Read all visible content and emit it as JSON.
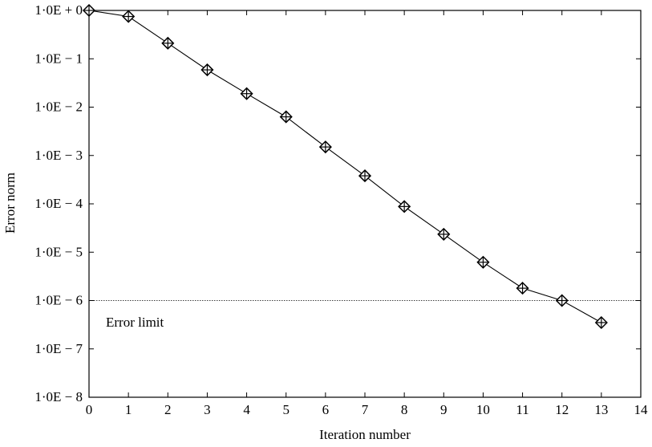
{
  "chart_data": {
    "type": "line",
    "title": "",
    "xlabel": "Iteration number",
    "ylabel": "Error norm",
    "xlim": [
      0,
      14
    ],
    "ylim": [
      1e-08,
      1
    ],
    "yscale": "log",
    "grid": false,
    "x_ticks": [
      "0",
      "1",
      "2",
      "3",
      "4",
      "5",
      "6",
      "7",
      "8",
      "9",
      "10",
      "11",
      "12",
      "13",
      "14"
    ],
    "y_ticks": [
      "1·0E + 0",
      "1·0E − 1",
      "1·0E − 2",
      "1·0E − 3",
      "1·0E − 4",
      "1·0E − 5",
      "1·0E − 6",
      "1·0E − 7",
      "1·0E − 8"
    ],
    "series": [
      {
        "marker": "diamond-cross",
        "color": "#000000",
        "x": [
          0,
          1,
          2,
          3,
          4,
          5,
          6,
          7,
          8,
          9,
          10,
          11,
          12,
          13
        ],
        "y": [
          1.0,
          0.75,
          0.21,
          0.059,
          0.019,
          0.0063,
          0.0015,
          0.00038,
          8.8e-05,
          2.35e-05,
          6.2e-06,
          1.8e-06,
          1e-06,
          3.5e-07
        ]
      }
    ],
    "reference_line": {
      "y": 1e-06,
      "style": "dotted",
      "label": "Error limit"
    }
  }
}
